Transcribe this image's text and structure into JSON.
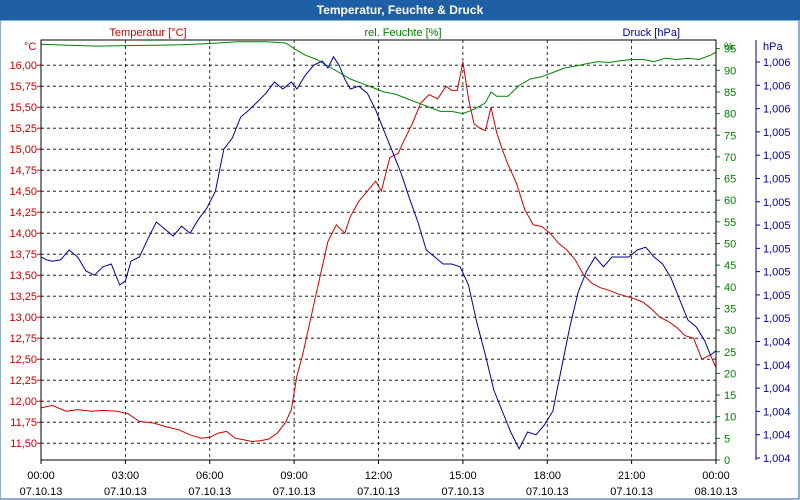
{
  "window": {
    "title": "Temperatur, Feuchte & Druck"
  },
  "colors": {
    "title_bg": "#1f5fa6",
    "temperature": "#cc0000",
    "humidity": "#008000",
    "pressure": "#000099",
    "grid": "#000000",
    "axis_text": "#000000"
  },
  "chart_data": {
    "type": "line",
    "title": "Temperatur, Feuchte & Druck",
    "x_ticks": [
      {
        "time": "00:00",
        "date": "07.10.13",
        "h": 0
      },
      {
        "time": "03:00",
        "date": "07.10.13",
        "h": 3
      },
      {
        "time": "06:00",
        "date": "07.10.13",
        "h": 6
      },
      {
        "time": "09:00",
        "date": "07.10.13",
        "h": 9
      },
      {
        "time": "12:00",
        "date": "07.10.13",
        "h": 12
      },
      {
        "time": "15:00",
        "date": "07.10.13",
        "h": 15
      },
      {
        "time": "18:00",
        "date": "07.10.13",
        "h": 18
      },
      {
        "time": "21:00",
        "date": "07.10.13",
        "h": 21
      },
      {
        "time": "00:00",
        "date": "08.10.13",
        "h": 24
      }
    ],
    "xlim": [
      0,
      24
    ],
    "axes": {
      "temperature": {
        "label": "Temperatur [°C]",
        "unit": "°C",
        "ylim": [
          11.3,
          16.3
        ],
        "ticks": [
          "16,00",
          "15,75",
          "15,50",
          "15,25",
          "15,00",
          "14,75",
          "14,50",
          "14,25",
          "14,00",
          "13,75",
          "13,50",
          "13,25",
          "13,00",
          "12,75",
          "12,50",
          "12,25",
          "12,00",
          "11,75",
          "11,50"
        ]
      },
      "humidity": {
        "label": "rel. Feuchte [%]",
        "unit": "%",
        "ylim": [
          0,
          97
        ],
        "ticks": [
          "95",
          "90",
          "85",
          "80",
          "75",
          "70",
          "65",
          "60",
          "55",
          "50",
          "45",
          "40",
          "35",
          "30",
          "25",
          "20",
          "15",
          "10",
          "5",
          "0"
        ]
      },
      "pressure": {
        "label": "Druck [hPa]",
        "unit": "hPa",
        "ylim": [
          1003.5,
          1006.5
        ],
        "ticks": [
          "1,006",
          "1,006",
          "1,006",
          "1,005",
          "1,005",
          "1,005",
          "1,005",
          "1,005",
          "1,005",
          "1,005",
          "1,005",
          "1,005",
          "1,004",
          "1,004",
          "1,004",
          "1,004",
          "1,004",
          "1,004"
        ]
      }
    },
    "series": [
      {
        "name": "Temperatur [°C]",
        "axis": "temperature",
        "color": "#cc0000",
        "x": [
          0,
          0.4,
          0.9,
          1.3,
          1.8,
          2.2,
          2.7,
          3.1,
          3.5,
          4.0,
          4.4,
          4.9,
          5.3,
          5.7,
          6.0,
          6.3,
          6.6,
          6.9,
          7.2,
          7.5,
          7.8,
          8.1,
          8.4,
          8.7,
          8.9,
          9.1,
          9.3,
          9.6,
          9.9,
          10.2,
          10.5,
          10.8,
          11.0,
          11.3,
          11.6,
          11.9,
          12.1,
          12.4,
          12.7,
          12.9,
          13.2,
          13.5,
          13.8,
          14.1,
          14.4,
          14.6,
          14.8,
          15.0,
          15.2,
          15.4,
          15.6,
          15.8,
          16.0,
          16.2,
          16.4,
          16.6,
          16.9,
          17.2,
          17.5,
          17.8,
          18.1,
          18.4,
          18.7,
          19.0,
          19.3,
          19.6,
          19.9,
          20.2,
          20.5,
          20.8,
          21.1,
          21.4,
          21.7,
          22.0,
          22.3,
          22.6,
          22.9,
          23.2,
          23.5,
          23.8,
          24.0
        ],
        "values": [
          11.92,
          11.95,
          11.88,
          11.9,
          11.88,
          11.89,
          11.88,
          11.85,
          11.76,
          11.74,
          11.7,
          11.66,
          11.6,
          11.56,
          11.57,
          11.62,
          11.64,
          11.56,
          11.54,
          11.52,
          11.53,
          11.55,
          11.62,
          11.75,
          11.9,
          12.3,
          12.55,
          13.0,
          13.45,
          13.9,
          14.1,
          14.0,
          14.2,
          14.38,
          14.5,
          14.62,
          14.5,
          14.9,
          14.95,
          15.1,
          15.3,
          15.55,
          15.65,
          15.6,
          15.75,
          15.7,
          15.7,
          16.04,
          15.6,
          15.3,
          15.25,
          15.22,
          15.5,
          15.2,
          15.0,
          14.82,
          14.6,
          14.28,
          14.1,
          14.08,
          14.0,
          13.88,
          13.8,
          13.68,
          13.5,
          13.4,
          13.35,
          13.32,
          13.28,
          13.25,
          13.22,
          13.18,
          13.1,
          13.0,
          12.95,
          12.88,
          12.78,
          12.75,
          12.5,
          12.55,
          12.4
        ]
      },
      {
        "name": "rel. Feuchte [%]",
        "axis": "humidity",
        "color": "#008000",
        "x": [
          0,
          1,
          2,
          3,
          4,
          5,
          6,
          7,
          8,
          8.7,
          9.0,
          9.4,
          9.8,
          10.2,
          10.6,
          11.0,
          11.4,
          11.8,
          12.2,
          12.6,
          13.0,
          13.4,
          13.8,
          14.2,
          14.6,
          15.0,
          15.4,
          15.8,
          16.0,
          16.2,
          16.6,
          17.0,
          17.4,
          17.8,
          18.2,
          18.6,
          19.0,
          19.4,
          19.8,
          20.2,
          20.6,
          21.0,
          21.4,
          21.8,
          22.2,
          22.6,
          23.0,
          23.4,
          23.8,
          24.0
        ],
        "values": [
          96,
          95.8,
          95.6,
          95.7,
          95.8,
          95.9,
          96.2,
          96.6,
          96.6,
          96.3,
          95.0,
          93.5,
          92.5,
          91.0,
          89.5,
          88.0,
          87.0,
          86.0,
          85.0,
          84.5,
          83.5,
          82.5,
          81.5,
          80.5,
          80.5,
          80.0,
          81.0,
          82.5,
          85.0,
          84.0,
          84.0,
          86.5,
          88.0,
          88.5,
          89.5,
          90.5,
          91.0,
          91.5,
          92.0,
          91.8,
          92.2,
          92.5,
          92.5,
          92.0,
          92.8,
          92.5,
          92.8,
          92.5,
          93.5,
          94.2
        ]
      },
      {
        "name": "Druck [hPa]",
        "axis": "pressure",
        "color": "#000099",
        "x": [
          0,
          0.2,
          0.4,
          0.7,
          1.0,
          1.3,
          1.6,
          1.9,
          2.2,
          2.5,
          2.8,
          3.0,
          3.2,
          3.5,
          3.8,
          4.1,
          4.4,
          4.7,
          5.0,
          5.3,
          5.6,
          5.9,
          6.2,
          6.5,
          6.8,
          7.1,
          7.4,
          7.7,
          8.0,
          8.3,
          8.6,
          8.9,
          9.1,
          9.4,
          9.7,
          10.0,
          10.2,
          10.4,
          10.6,
          10.8,
          11.0,
          11.3,
          11.6,
          11.9,
          12.2,
          12.5,
          12.8,
          13.1,
          13.4,
          13.7,
          14.0,
          14.3,
          14.6,
          14.9,
          15.2,
          15.5,
          15.8,
          16.1,
          16.4,
          16.7,
          17.0,
          17.3,
          17.6,
          17.9,
          18.2,
          18.5,
          18.8,
          19.1,
          19.4,
          19.7,
          20.0,
          20.3,
          20.6,
          20.9,
          21.2,
          21.5,
          21.8,
          22.1,
          22.4,
          22.7,
          23.0,
          23.3,
          23.6,
          23.8,
          24.0
        ],
        "values": [
          1004.95,
          1004.93,
          1004.92,
          1004.93,
          1005.0,
          1004.95,
          1004.85,
          1004.82,
          1004.88,
          1004.9,
          1004.75,
          1004.78,
          1004.92,
          1004.95,
          1005.08,
          1005.2,
          1005.15,
          1005.1,
          1005.17,
          1005.12,
          1005.22,
          1005.3,
          1005.42,
          1005.72,
          1005.8,
          1005.95,
          1006.0,
          1006.06,
          1006.12,
          1006.2,
          1006.15,
          1006.2,
          1006.15,
          1006.25,
          1006.32,
          1006.35,
          1006.3,
          1006.38,
          1006.32,
          1006.22,
          1006.15,
          1006.17,
          1006.12,
          1006.0,
          1005.85,
          1005.7,
          1005.55,
          1005.37,
          1005.2,
          1005.0,
          1004.95,
          1004.9,
          1004.9,
          1004.88,
          1004.75,
          1004.48,
          1004.25,
          1004.0,
          1003.85,
          1003.7,
          1003.58,
          1003.7,
          1003.68,
          1003.75,
          1003.85,
          1004.15,
          1004.45,
          1004.7,
          1004.85,
          1004.95,
          1004.88,
          1004.95,
          1004.95,
          1004.95,
          1005.0,
          1005.02,
          1004.95,
          1004.9,
          1004.8,
          1004.65,
          1004.5,
          1004.45,
          1004.35,
          1004.25,
          1004.28
        ]
      }
    ]
  }
}
